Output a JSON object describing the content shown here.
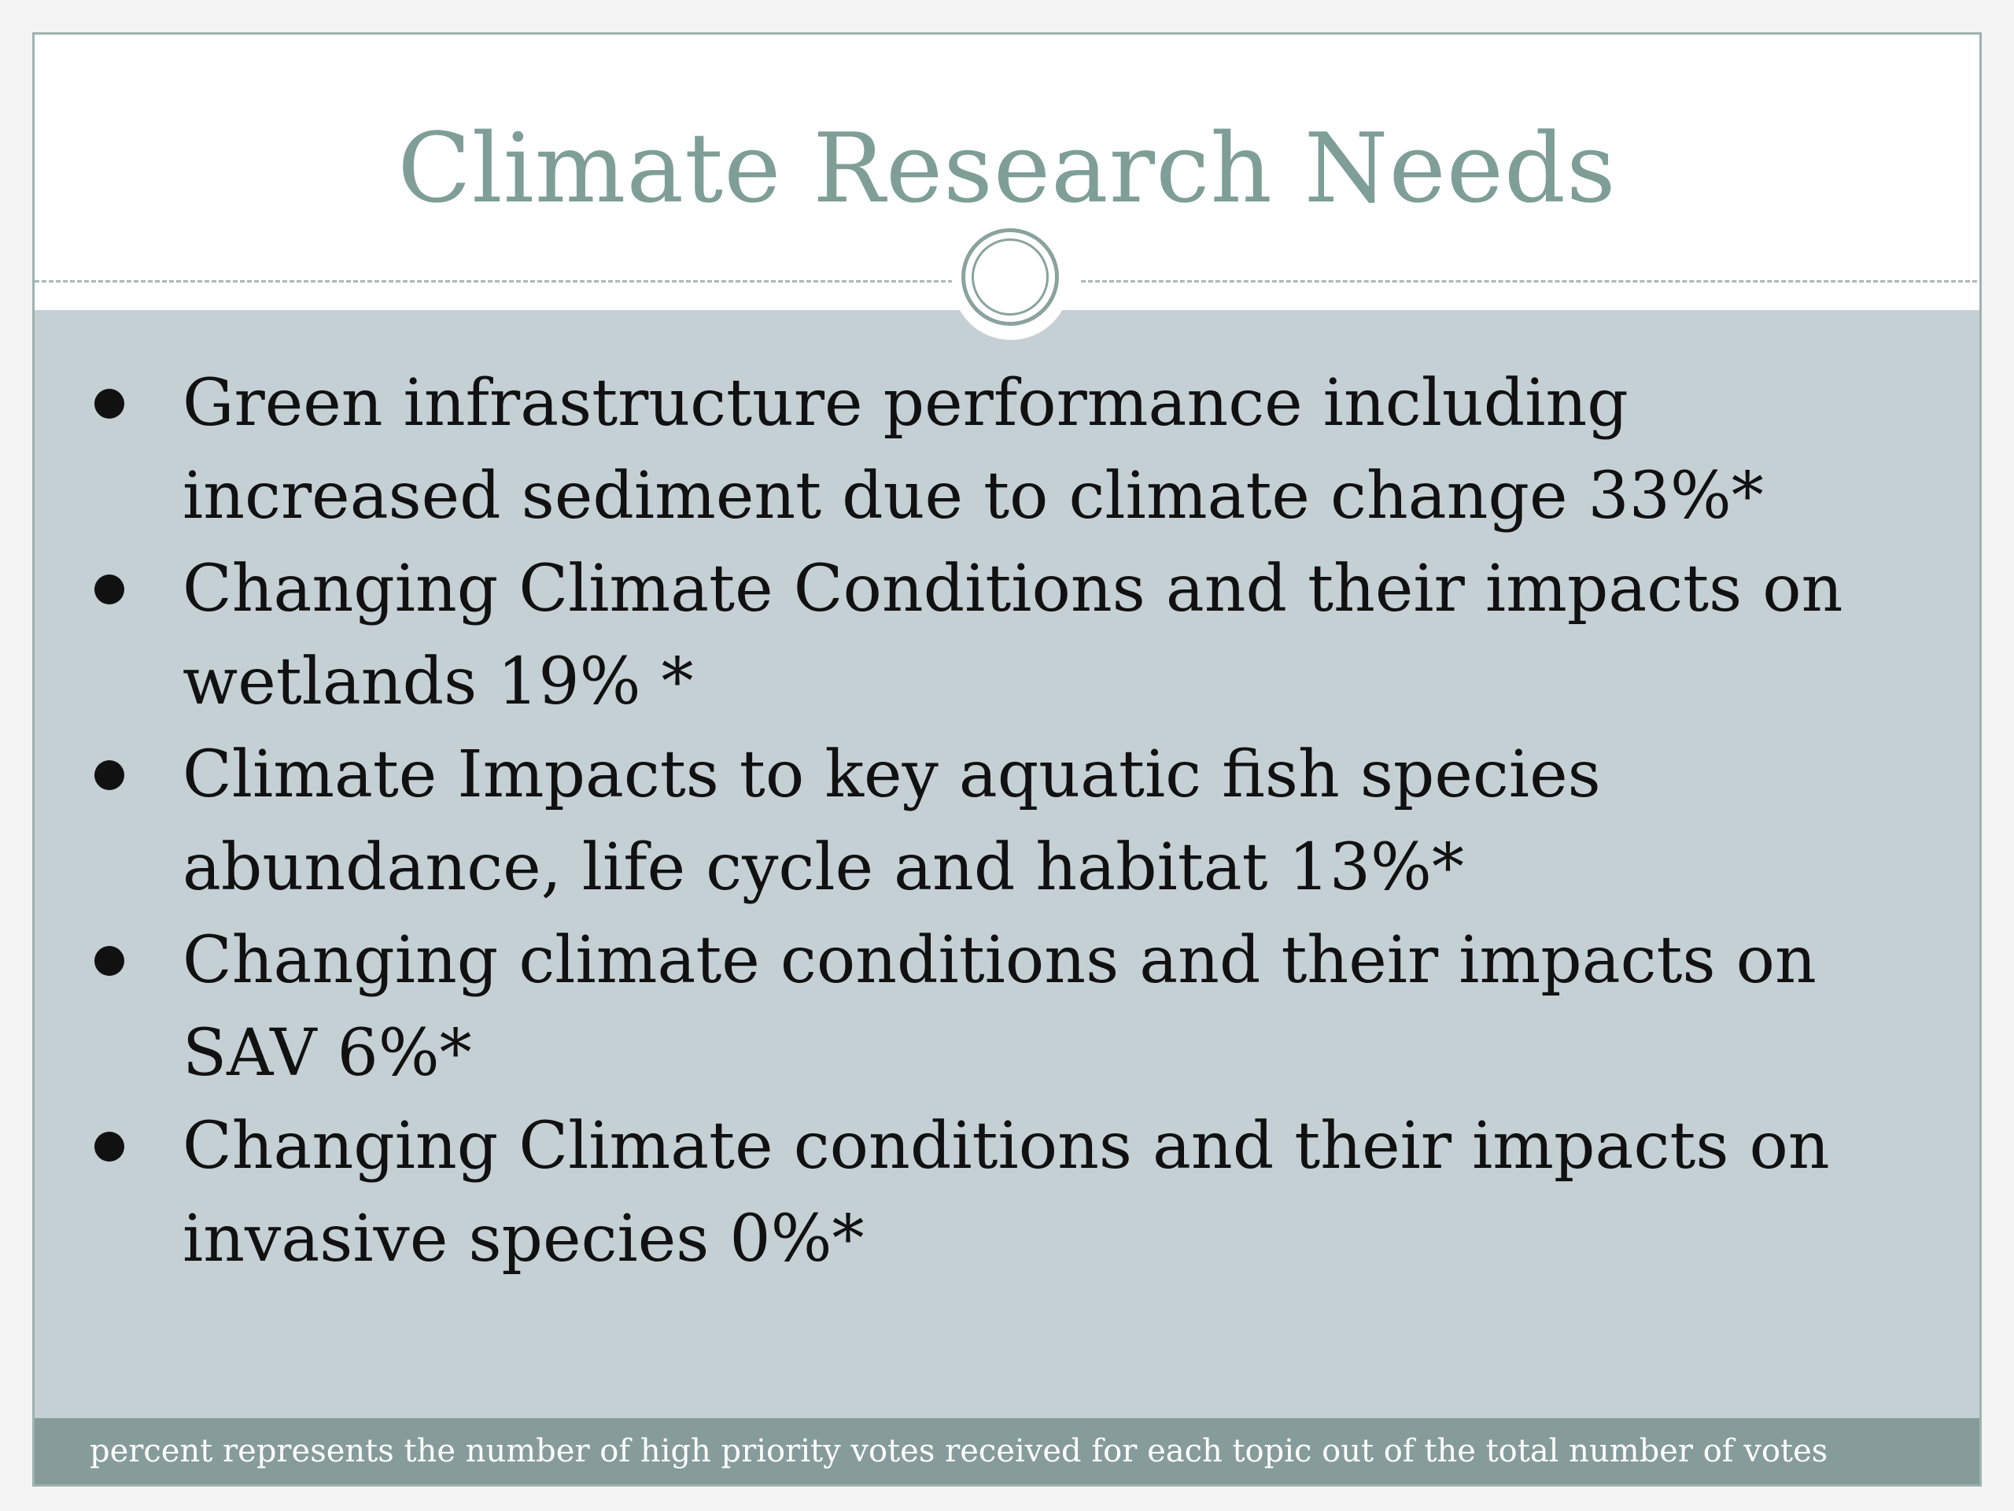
{
  "slide": {
    "title": "Climate Research Needs",
    "bullets": [
      "Green infrastructure performance including increased sediment due to climate change 33%*",
      "Changing Climate Conditions and their impacts on wetlands  19% *",
      "Climate Impacts to key aquatic fish species abundance, life cycle and habitat 13%*",
      "Changing climate conditions and their impacts on SAV 6%*",
      "Changing Climate conditions and their impacts on invasive species 0%*"
    ],
    "footnote": "percent represents the number of high priority votes received for each topic out of the total number of votes"
  },
  "colors": {
    "title": "#7e9e96",
    "content_background": "#c5d0d5",
    "footer_background": "#869c9a",
    "accent": "#8aa39c"
  }
}
